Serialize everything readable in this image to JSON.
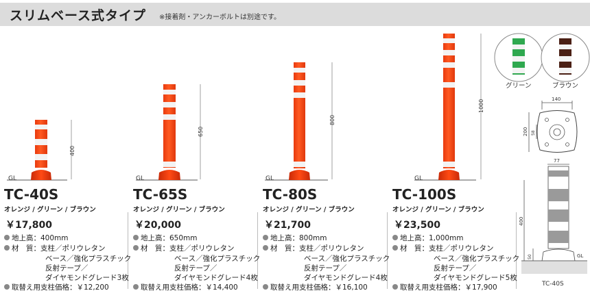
{
  "header": {
    "title": "スリムベース式タイプ",
    "note": "※接着剤・アンカーボルトは別途です。"
  },
  "common": {
    "gl": "GL",
    "colors": "オレンジ / グリーン / ブラウン",
    "height_label": "地上高：",
    "material_label": "材　質：",
    "material_1": "支柱／ポリウレタン",
    "material_2": "ベース／強化プラスチック",
    "material_3": "反射テープ／",
    "replace_label": "取替え用支柱価格：",
    "diamond_prefix": "ダイヤモンドグレード"
  },
  "products": [
    {
      "name": "TC-40S",
      "price": "￥17,800",
      "height": "400mm",
      "diamond": "ダイヤモンドグレード3枚",
      "replace_price": "￥12,200",
      "dim": "400"
    },
    {
      "name": "TC-65S",
      "price": "￥20,000",
      "height": "650mm",
      "diamond": "ダイヤモンドグレード4枚",
      "replace_price": "￥14,400",
      "dim": "650"
    },
    {
      "name": "TC-80S",
      "price": "￥21,700",
      "height": "800mm",
      "diamond": "ダイヤモンドグレード4枚",
      "replace_price": "￥16,100",
      "dim": "800"
    },
    {
      "name": "TC-100S",
      "price": "￥23,500",
      "height": "1,000mm",
      "diamond": "ダイヤモンドグレード5枚",
      "replace_price": "￥17,900",
      "dim": "1000"
    }
  ],
  "swatches": [
    {
      "label": "グリーン",
      "color": "#2fa84f"
    },
    {
      "label": "ブラウン",
      "color": "#4a1f14"
    }
  ],
  "diagram": {
    "top_width": "140",
    "top_height": "200",
    "inner": "58",
    "side_width": "77",
    "side_height": "400",
    "base_height": "50",
    "gl": "GL",
    "caption": "TC-40S"
  },
  "colors": {
    "orange": "#ff4a14",
    "stripe": "#f3f3f3",
    "base": "#e2340c"
  }
}
